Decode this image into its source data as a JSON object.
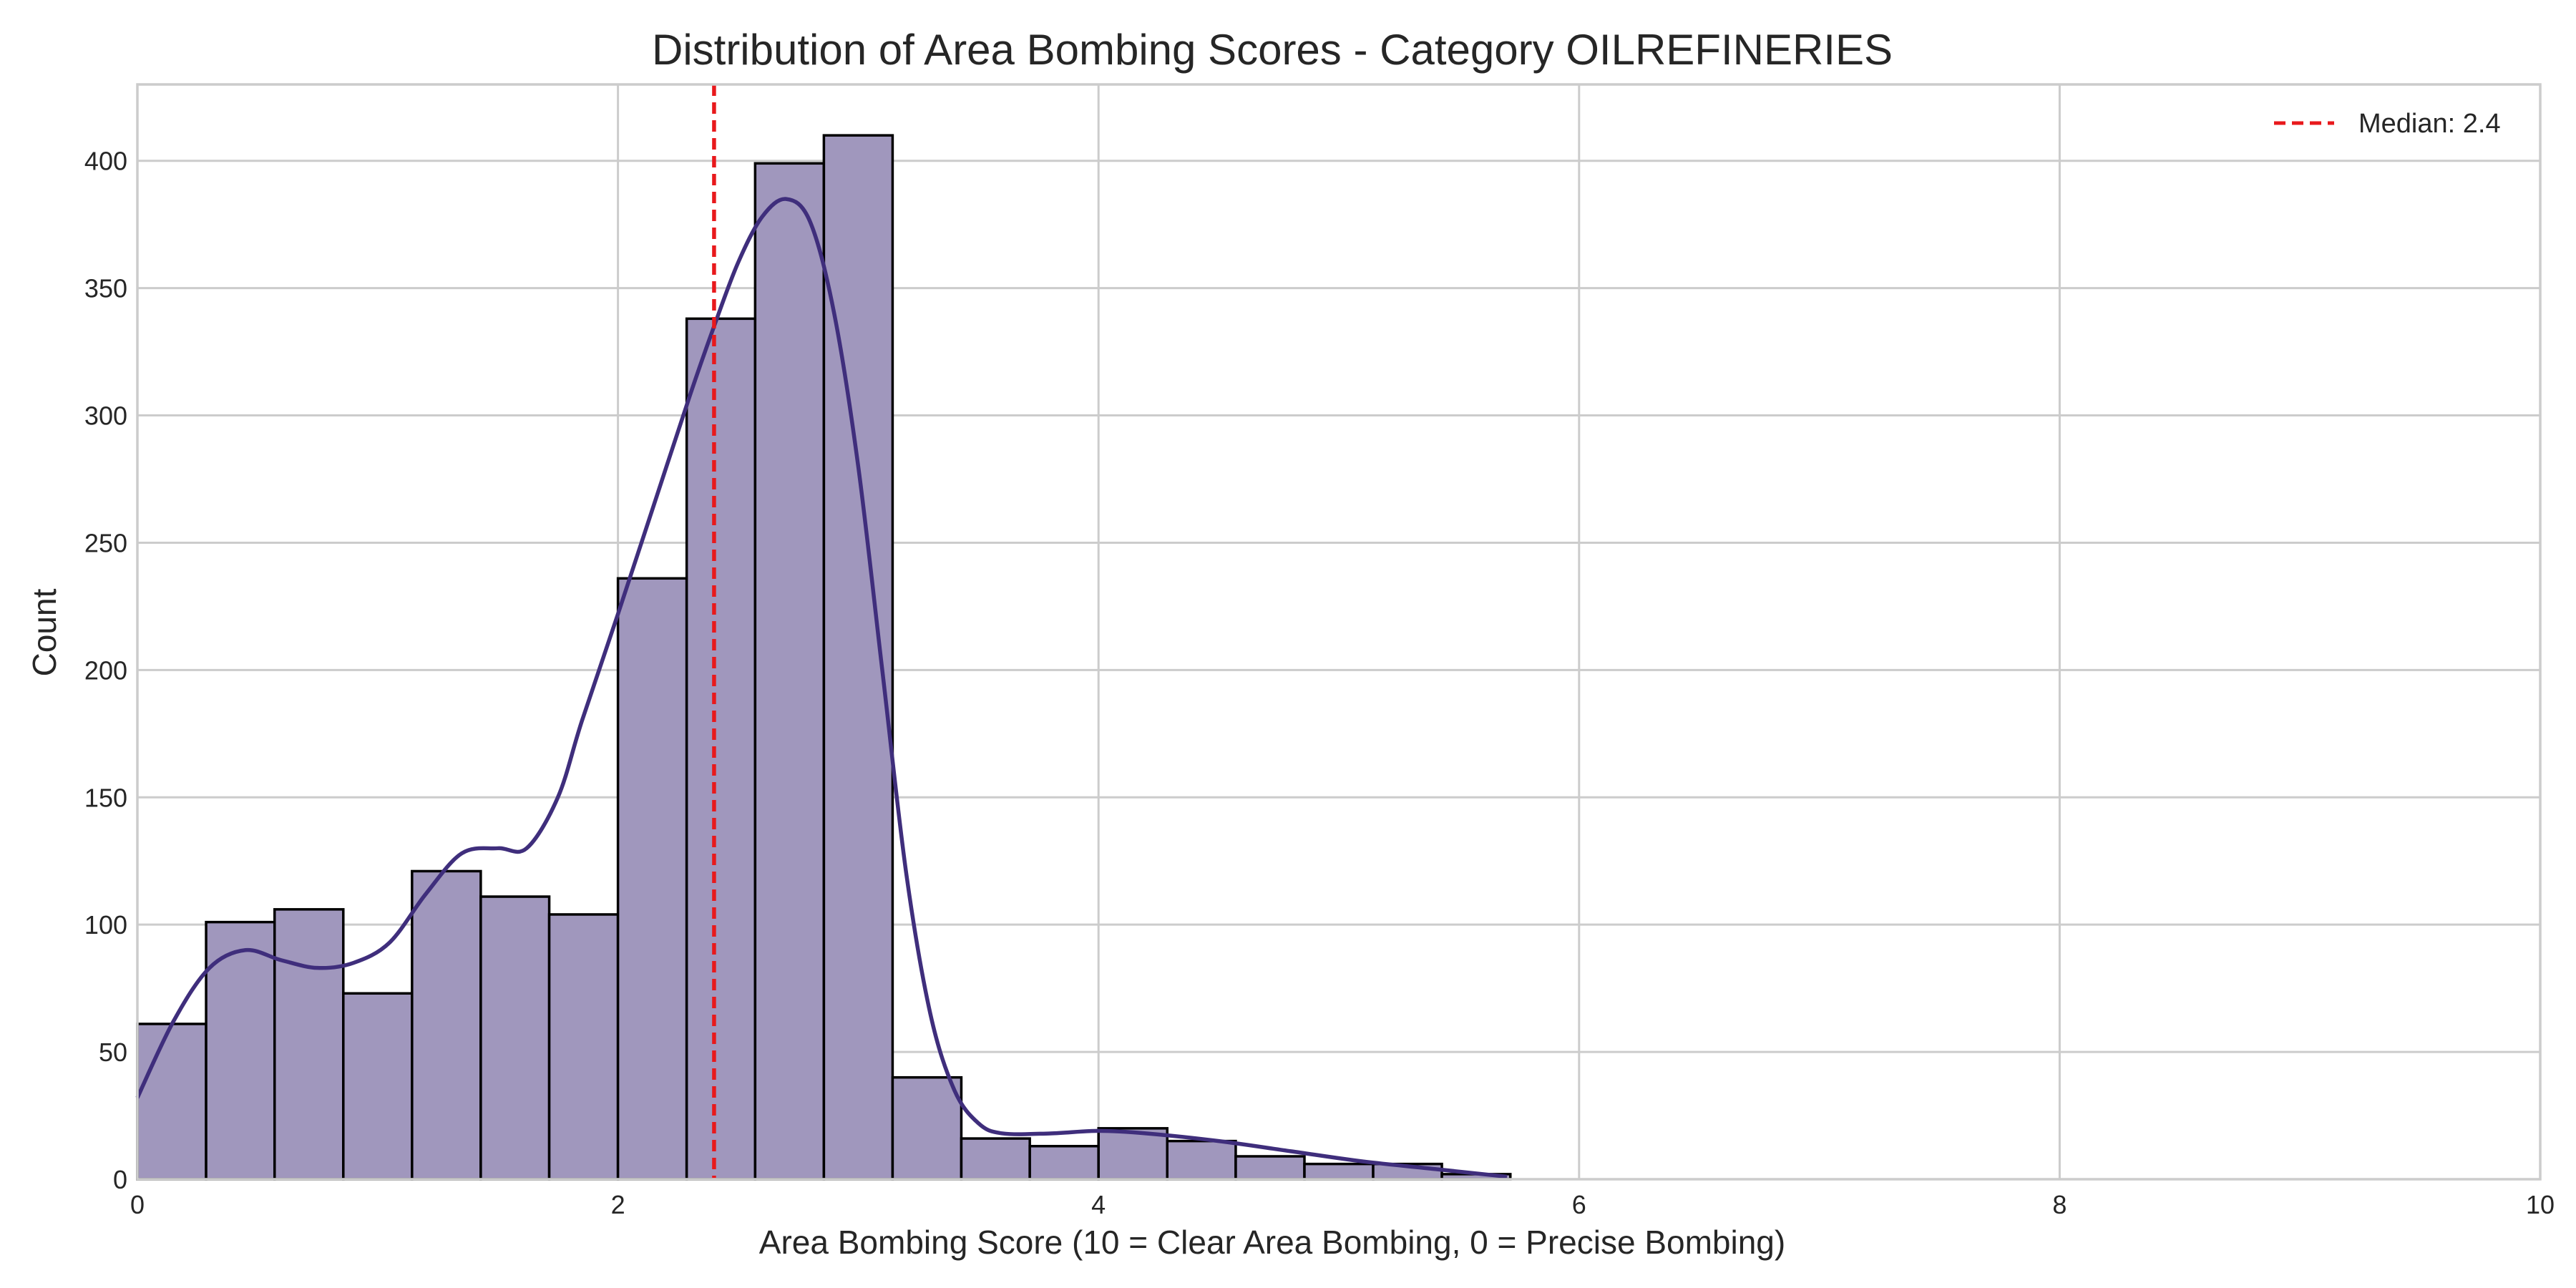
{
  "chart_data": {
    "type": "bar",
    "subtype": "histogram",
    "title": "Distribution of Area Bombing Scores - Category OILREFINERIES",
    "xlabel": "Area Bombing Score (10 = Clear Area Bombing, 0 = Precise Bombing)",
    "ylabel": "Count",
    "xlim": [
      0,
      10
    ],
    "ylim": [
      0,
      430
    ],
    "xticks": [
      0,
      2,
      4,
      6,
      8,
      10
    ],
    "yticks": [
      0,
      50,
      100,
      150,
      200,
      250,
      300,
      350,
      400
    ],
    "grid": true,
    "legend_position": "top-right",
    "bins": {
      "edges": [
        0.0,
        0.286,
        0.571,
        0.857,
        1.143,
        1.429,
        1.714,
        2.0,
        2.286,
        2.571,
        2.857,
        3.143,
        3.429,
        3.714,
        4.0,
        4.286,
        4.571,
        4.857,
        5.143,
        5.429,
        5.714
      ],
      "counts": [
        61,
        101,
        106,
        73,
        121,
        111,
        104,
        236,
        338,
        399,
        410,
        40,
        16,
        13,
        20,
        15,
        9,
        6,
        6,
        2
      ]
    },
    "kde": {
      "x": [
        0.0,
        0.15,
        0.3,
        0.45,
        0.6,
        0.75,
        0.9,
        1.05,
        1.2,
        1.35,
        1.5,
        1.62,
        1.75,
        1.85,
        2.0,
        2.15,
        2.3,
        2.4,
        2.5,
        2.6,
        2.7,
        2.8,
        2.9,
        3.0,
        3.1,
        3.2,
        3.3,
        3.4,
        3.5,
        3.6,
        3.8,
        4.0,
        4.2,
        4.5,
        4.8,
        5.1,
        5.4,
        5.7
      ],
      "y": [
        32,
        62,
        83,
        90,
        86,
        83,
        85,
        93,
        112,
        128,
        130,
        130,
        150,
        180,
        222,
        265,
        308,
        335,
        360,
        378,
        385,
        376,
        340,
        280,
        200,
        120,
        65,
        35,
        22,
        18,
        18,
        19,
        18,
        15,
        11,
        7,
        4,
        1
      ]
    },
    "median": {
      "value": 2.4,
      "label": "Median: 2.4"
    },
    "colors": {
      "bar_fill": "#a097bd",
      "bar_edge": "#000000",
      "kde_line": "#3f2e7c",
      "median_line": "#e8191c",
      "grid": "#cccccc",
      "axes_edge": "#cccccc"
    }
  }
}
